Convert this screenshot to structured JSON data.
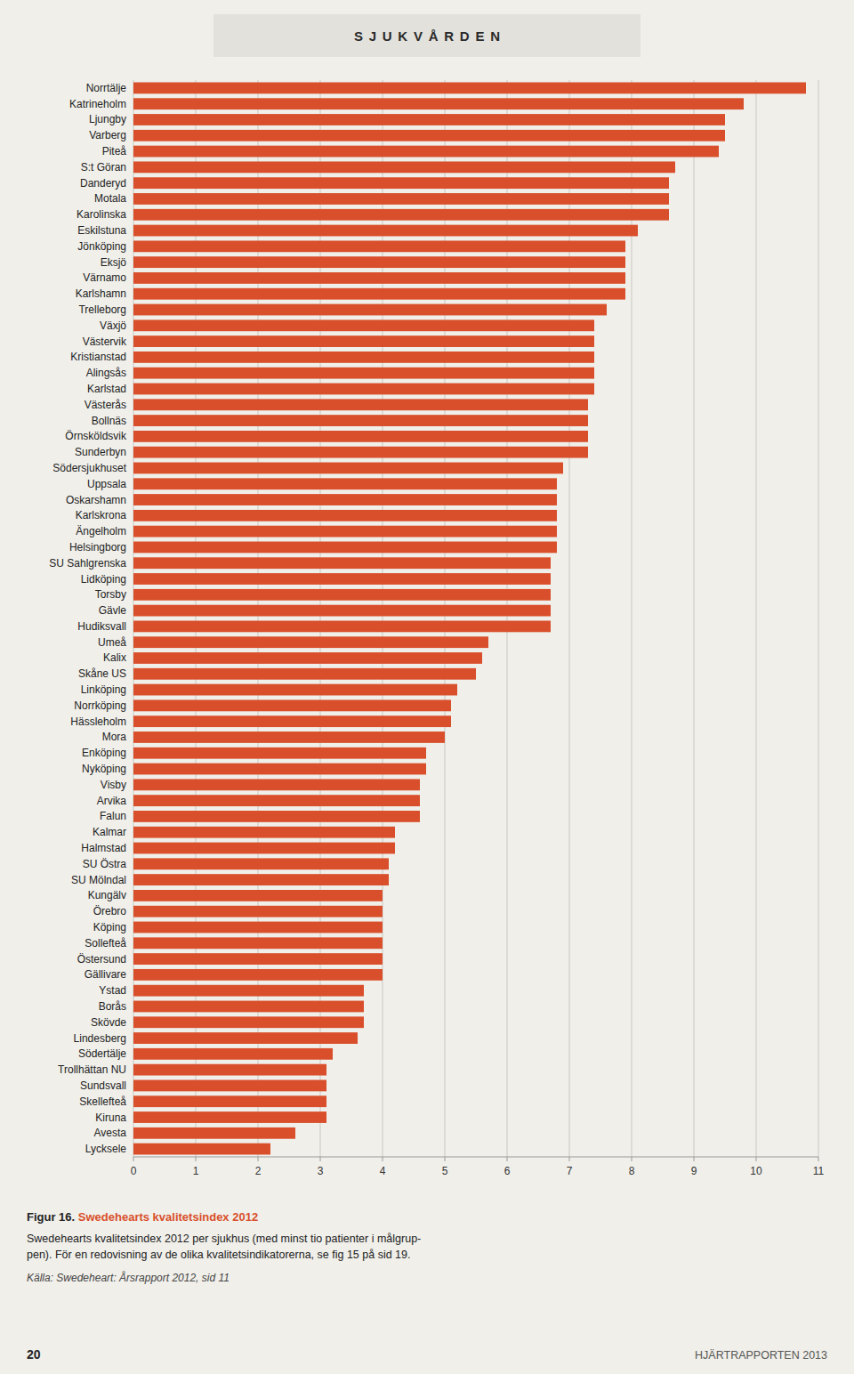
{
  "chart_data": {
    "type": "bar",
    "orientation": "horizontal",
    "title": "SJUKVÅRDEN",
    "categories": [
      "Norrtälje",
      "Katrineholm",
      "Ljungby",
      "Varberg",
      "Piteå",
      "S:t Göran",
      "Danderyd",
      "Motala",
      "Karolinska",
      "Eskilstuna",
      "Jönköping",
      "Eksjö",
      "Värnamo",
      "Karlshamn",
      "Trelleborg",
      "Växjö",
      "Västervik",
      "Kristianstad",
      "Alingsås",
      "Karlstad",
      "Västerås",
      "Bollnäs",
      "Örnsköldsvik",
      "Sunderbyn",
      "Södersjukhuset",
      "Uppsala",
      "Oskarshamn",
      "Karlskrona",
      "Ängelholm",
      "Helsingborg",
      "SU Sahlgrenska",
      "Lidköping",
      "Torsby",
      "Gävle",
      "Hudiksvall",
      "Umeå",
      "Kalix",
      "Skåne US",
      "Linköping",
      "Norrköping",
      "Hässleholm",
      "Mora",
      "Enköping",
      "Nyköping",
      "Visby",
      "Arvika",
      "Falun",
      "Kalmar",
      "Halmstad",
      "SU Östra",
      "SU Mölndal",
      "Kungälv",
      "Örebro",
      "Köping",
      "Sollefteå",
      "Östersund",
      "Gällivare",
      "Ystad",
      "Borås",
      "Skövde",
      "Lindesberg",
      "Södertälje",
      "Trollhättan NU",
      "Sundsvall",
      "Skellefteå",
      "Kiruna",
      "Avesta",
      "Lycksele"
    ],
    "values": [
      10.8,
      9.8,
      9.5,
      9.5,
      9.4,
      8.7,
      8.6,
      8.6,
      8.6,
      8.1,
      7.9,
      7.9,
      7.9,
      7.9,
      7.6,
      7.4,
      7.4,
      7.4,
      7.4,
      7.4,
      7.3,
      7.3,
      7.3,
      7.3,
      6.9,
      6.8,
      6.8,
      6.8,
      6.8,
      6.8,
      6.7,
      6.7,
      6.7,
      6.7,
      6.7,
      5.7,
      5.6,
      5.5,
      5.2,
      5.1,
      5.1,
      5.0,
      4.7,
      4.7,
      4.6,
      4.6,
      4.6,
      4.2,
      4.2,
      4.1,
      4.1,
      4.0,
      4.0,
      4.0,
      4.0,
      4.0,
      4.0,
      3.7,
      3.7,
      3.7,
      3.6,
      3.2,
      3.1,
      3.1,
      3.1,
      3.1,
      2.6,
      2.2
    ],
    "color": "#d94f2b",
    "xlim": [
      0,
      11
    ],
    "xticks": [
      0,
      1,
      2,
      3,
      4,
      5,
      6,
      7,
      8,
      9,
      10,
      11
    ],
    "grid": true,
    "annotations": [
      "Figur 16. ",
      "Swedehearts kvalitetsindex 2012",
      "Swedehearts kvalitetsindex 2012 per sjukhus (med minst tio patienter i målgrup-\npen). För en redovisning av de olika kvalitetsindikatorerna, se fig 15 på sid 19.",
      "Källa: Swedeheart: Årsrapport 2012, sid 11",
      "20",
      "HJÄRTRAPPORTEN 2013"
    ]
  }
}
